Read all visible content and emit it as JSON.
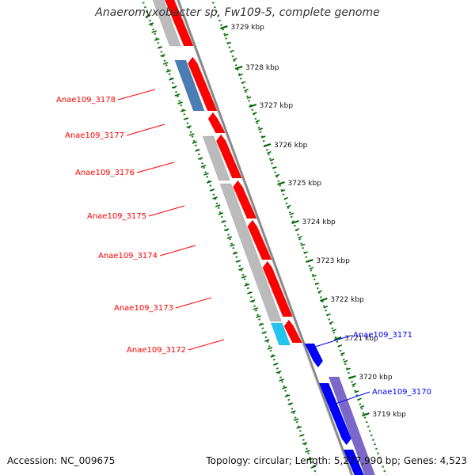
{
  "title": "Anaeromyxobacter sp. Fw109-5, complete genome",
  "footer": {
    "accession": "Accession: NC_009675",
    "summary": "Topology: circular; Length: 5,277,990 bp; Genes: 4,523"
  },
  "colors": {
    "forward_cds": "#ff0000",
    "reverse_cds": "#0000ff",
    "grey_feature": "#bbbbbb",
    "steelblue_feature": "#4a7db3",
    "cyan_feature": "#22c4f0",
    "purple_feature": "#7b68c8",
    "dotted_ring": "#228b22",
    "backbone": "#888888"
  },
  "scale_ticks": [
    {
      "label": "3729 kbp"
    },
    {
      "label": "3728 kbp"
    },
    {
      "label": "3727 kbp"
    },
    {
      "label": "3726 kbp"
    },
    {
      "label": "3725 kbp"
    },
    {
      "label": "3724 kbp"
    },
    {
      "label": "3723 kbp"
    },
    {
      "label": "3722 kbp"
    },
    {
      "label": "3721 kbp"
    },
    {
      "label": "3720 kbp"
    },
    {
      "label": "3719 kbp"
    }
  ],
  "gene_labels": [
    {
      "name": "Anae109_3178",
      "strand": "forward"
    },
    {
      "name": "Anae109_3177",
      "strand": "forward"
    },
    {
      "name": "Anae109_3176",
      "strand": "forward"
    },
    {
      "name": "Anae109_3175",
      "strand": "forward"
    },
    {
      "name": "Anae109_3174",
      "strand": "forward"
    },
    {
      "name": "Anae109_3173",
      "strand": "forward"
    },
    {
      "name": "Anae109_3172",
      "strand": "forward"
    },
    {
      "name": "Anae109_3171",
      "strand": "reverse"
    },
    {
      "name": "Anae109_3170",
      "strand": "reverse"
    }
  ]
}
